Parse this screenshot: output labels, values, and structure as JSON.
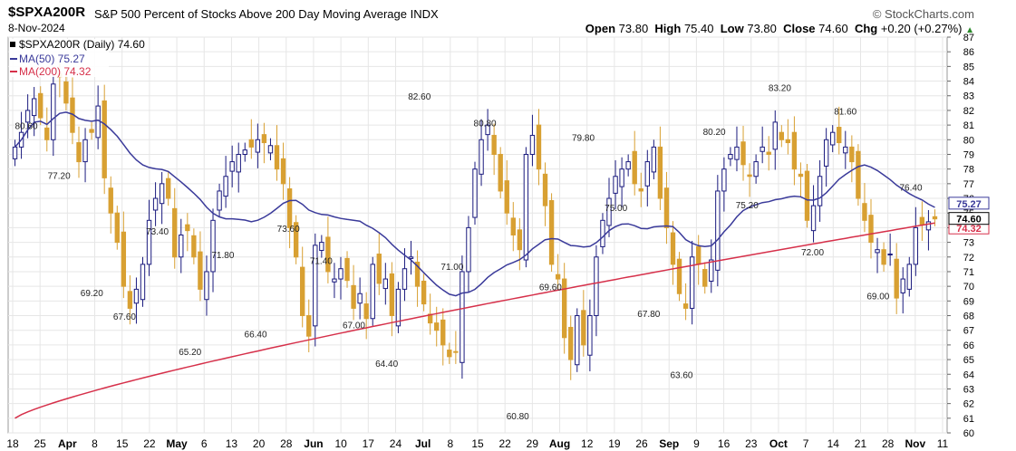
{
  "header": {
    "symbol": "$SPXA200R",
    "description": "S&P 500 Percent of Stocks Above 200 Day Moving Average",
    "exchange": "INDX",
    "date": "8-Nov-2024",
    "brand": "© StockCharts.com",
    "open_label": "Open",
    "open": "73.80",
    "high_label": "High",
    "high": "75.40",
    "low_label": "Low",
    "low": "73.80",
    "close_label": "Close",
    "close": "74.60",
    "chg_label": "Chg",
    "chg": "+0.20 (+0.27%)"
  },
  "legend": {
    "price": "$SPXA200R (Daily) 74.60",
    "ma50": "MA(50) 75.27",
    "ma200": "MA(200) 74.32"
  },
  "colors": {
    "up": "#1a1a7e",
    "down": "#d8a032",
    "ma50": "#3a3a9a",
    "ma200": "#d6304a",
    "grid": "#e6e6e6"
  },
  "chart_data": {
    "type": "candlestick",
    "title": "$SPXA200R S&P 500 Percent of Stocks Above 200 Day Moving Average",
    "ylim": [
      60,
      87
    ],
    "y_ticks": [
      60,
      61,
      62,
      63,
      64,
      65,
      66,
      67,
      68,
      69,
      70,
      71,
      72,
      73,
      74,
      75,
      76,
      77,
      78,
      79,
      80,
      81,
      82,
      83,
      84,
      85,
      86,
      87
    ],
    "x_ticks": [
      "18",
      "25",
      "Apr",
      "8",
      "15",
      "22",
      "May",
      "6",
      "13",
      "20",
      "28",
      "Jun",
      "10",
      "17",
      "24",
      "Jul",
      "8",
      "15",
      "22",
      "29",
      "Aug",
      "12",
      "19",
      "26",
      "Sep",
      "9",
      "16",
      "23",
      "Oct",
      "7",
      "14",
      "21",
      "28",
      "Nov",
      "11"
    ],
    "series": [
      {
        "name": "$SPXA200R (Daily)",
        "close_values": [
          79.5,
          80.5,
          82.0,
          82.8,
          81.5,
          80.0,
          83.8,
          84.3,
          82.5,
          80.5,
          78.5,
          80.0,
          80.5,
          82.3,
          77.4,
          75.0,
          73.0,
          70.0,
          68.5,
          69.8,
          71.5,
          74.5,
          76.0,
          77.0,
          76.0,
          72.0,
          73.5,
          73.8,
          72.0,
          69.8,
          71.0,
          74.5,
          76.5,
          77.5,
          78.5,
          79.0,
          79.3,
          79.5,
          80.0,
          79.8,
          79.6,
          78.0,
          77.0,
          74.0,
          72.0,
          68.0,
          66.6,
          72.8,
          73.0,
          71.0,
          70.5,
          71.2,
          70.4,
          68.5,
          69.5,
          67.8,
          71.5,
          70.2,
          70.5,
          68.0,
          69.8,
          71.2,
          72.0,
          70.0,
          68.8,
          67.5,
          67.0,
          66.0,
          65.2,
          65.5,
          71.0,
          74.0,
          78.0,
          80.0,
          81.0,
          79.0,
          76.5,
          75.0,
          73.5,
          72.5,
          79.0,
          80.3,
          78.0,
          75.5,
          71.5,
          70.5,
          66.5,
          65.0,
          68.0,
          66.0,
          68.0,
          72.0,
          74.5,
          76.0,
          77.5,
          78.0,
          78.5,
          77.0,
          76.5,
          78.5,
          79.5,
          76.0,
          74.0,
          71.5,
          69.5,
          68.5,
          72.0,
          71.5,
          70.0,
          71.8,
          76.5,
          78.0,
          79.0,
          79.5,
          78.3,
          77.5,
          78.5,
          79.5,
          79.0,
          81.2,
          80.0,
          79.8,
          78.0,
          77.5,
          74.5,
          75.5,
          77.5,
          80.0,
          80.5,
          79.8,
          79.5,
          78.5,
          76.0,
          74.5,
          73.0,
          72.5,
          71.5,
          72.2,
          69.2,
          70.5,
          71.5,
          74.0,
          74.2,
          74.4,
          74.6
        ]
      },
      {
        "name": "MA(50)",
        "last": 75.27
      },
      {
        "name": "MA(200)",
        "last": 74.32
      }
    ],
    "annotations": [
      {
        "label": "80.60",
        "y": 80.6
      },
      {
        "label": "77.20",
        "y": 77.2
      },
      {
        "label": "69.20",
        "y": 69.2
      },
      {
        "label": "67.60",
        "y": 67.6
      },
      {
        "label": "73.40",
        "y": 73.4
      },
      {
        "label": "65.20",
        "y": 65.2
      },
      {
        "label": "71.80",
        "y": 71.8
      },
      {
        "label": "66.40",
        "y": 66.4
      },
      {
        "label": "73.60",
        "y": 73.6
      },
      {
        "label": "71.40",
        "y": 71.4
      },
      {
        "label": "67.00",
        "y": 67.0
      },
      {
        "label": "64.40",
        "y": 64.4
      },
      {
        "label": "82.60",
        "y": 82.6
      },
      {
        "label": "71.00",
        "y": 71.0
      },
      {
        "label": "80.80",
        "y": 80.8
      },
      {
        "label": "60.80",
        "y": 60.8
      },
      {
        "label": "69.60",
        "y": 69.6
      },
      {
        "label": "79.80",
        "y": 79.8
      },
      {
        "label": "75.00",
        "y": 75.0
      },
      {
        "label": "67.80",
        "y": 67.8
      },
      {
        "label": "63.60",
        "y": 63.6
      },
      {
        "label": "80.20",
        "y": 80.2
      },
      {
        "label": "75.20",
        "y": 75.2
      },
      {
        "label": "83.20",
        "y": 83.2
      },
      {
        "label": "72.00",
        "y": 72.0
      },
      {
        "label": "81.60",
        "y": 81.6
      },
      {
        "label": "69.00",
        "y": 69.0
      },
      {
        "label": "76.40",
        "y": 76.4
      }
    ],
    "last_price_tags": {
      "ma50": "75.27",
      "ma200": "74.32",
      "price": "74.60"
    }
  }
}
